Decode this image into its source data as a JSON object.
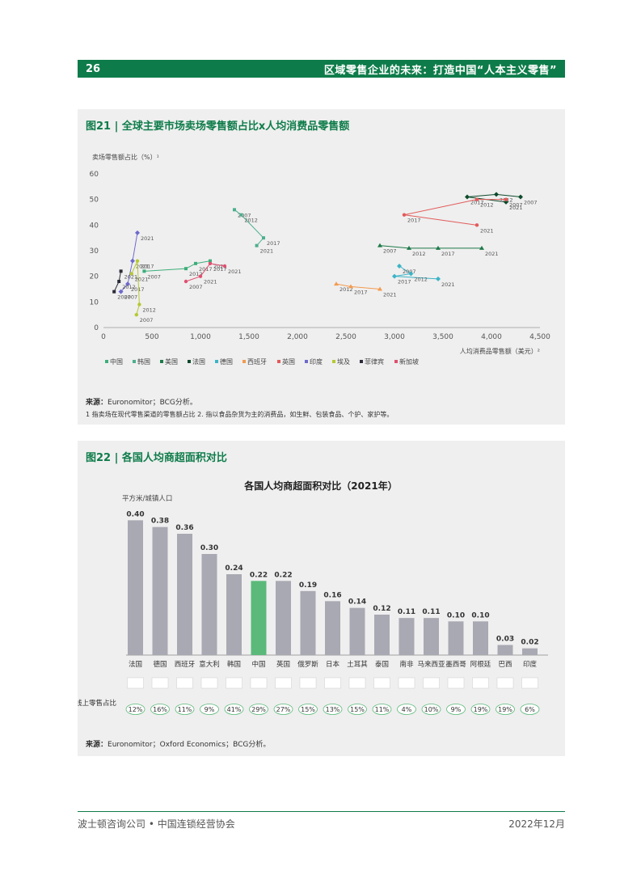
{
  "header": {
    "page_number": "26",
    "title": "区域零售企业的未来：打造中国“人本主义零售”"
  },
  "figure21": {
    "title": "图21 | 全球主要市场卖场零售额占比x人均消费品零售额",
    "source_label": "来源：",
    "source_text": "Euronomitor；BCG分析。",
    "note": "1 指卖场在现代零售渠道的零售额占比 2. 指以食品杂货为主的消费品，如生鲜、包装食品、个护、家护等。",
    "chart_data": {
      "type": "scatter",
      "ylabel": "卖场零售额占比（%）¹",
      "xlabel": "人均消费品零售额（美元）²",
      "xlim": [
        0,
        4500
      ],
      "ylim": [
        0,
        60
      ],
      "xticks": [
        "0",
        "500",
        "1,000",
        "1,500",
        "2,000",
        "2,500",
        "3,000",
        "3,500",
        "4,000",
        "4,500"
      ],
      "yticks": [
        "0",
        "10",
        "20",
        "30",
        "40",
        "50",
        "60"
      ],
      "x_tick_values": [
        0,
        500,
        1000,
        1500,
        2000,
        2500,
        3000,
        3500,
        4000,
        4500
      ],
      "y_tick_values": [
        0,
        10,
        20,
        30,
        40,
        50,
        60
      ],
      "legend_position": "bottom",
      "series": [
        {
          "name": "中国",
          "color": "#3dae7a",
          "marker": "square",
          "points": [
            [
              420,
              22,
              "2007"
            ],
            [
              850,
              23,
              "2012"
            ],
            [
              950,
              25,
              "2017"
            ],
            [
              1100,
              26,
              "2021"
            ]
          ]
        },
        {
          "name": "韩国",
          "color": "#4caf8c",
          "marker": "square",
          "points": [
            [
              1350,
              46,
              "2007"
            ],
            [
              1420,
              44,
              "2012"
            ],
            [
              1650,
              35,
              "2017"
            ],
            [
              1580,
              32,
              "2021"
            ]
          ]
        },
        {
          "name": "美国",
          "color": "#1e7a4a",
          "marker": "triangle",
          "points": [
            [
              2850,
              32,
              "2007"
            ],
            [
              3150,
              31,
              "2012"
            ],
            [
              3450,
              31,
              "2017"
            ],
            [
              3900,
              31,
              "2021"
            ]
          ]
        },
        {
          "name": "法国",
          "color": "#0d4a2b",
          "marker": "diamond",
          "points": [
            [
              4300,
              51,
              "2007"
            ],
            [
              4050,
              52,
              "2012"
            ],
            [
              3750,
              51,
              "2017"
            ],
            [
              4150,
              49,
              "2021"
            ]
          ]
        },
        {
          "name": "德国",
          "color": "#3bb4c6",
          "marker": "diamond",
          "points": [
            [
              3050,
              24,
              "2007"
            ],
            [
              3170,
              21,
              "2012"
            ],
            [
              3000,
              20,
              "2017"
            ],
            [
              3450,
              19,
              "2021"
            ]
          ]
        },
        {
          "name": "西班牙",
          "color": "#f39b50",
          "marker": "triangle",
          "points": [
            [
              2400,
              17,
              "2012"
            ],
            [
              2550,
              16,
              "2017"
            ],
            [
              2850,
              15,
              "2021"
            ]
          ]
        },
        {
          "name": "英国",
          "color": "#e35a5a",
          "marker": "dot",
          "points": [
            [
              4150,
              50,
              "2007"
            ],
            [
              3850,
              50,
              "2012"
            ],
            [
              3100,
              44,
              "2017"
            ],
            [
              3850,
              40,
              "2021"
            ]
          ]
        },
        {
          "name": "印度",
          "color": "#6d6acc",
          "marker": "diamond",
          "points": [
            [
              180,
              14,
              "2007"
            ],
            [
              250,
              17,
              "2017"
            ],
            [
              300,
              26,
              "2021"
            ],
            [
              350,
              37,
              "2021"
            ]
          ]
        },
        {
          "name": "埃及",
          "color": "#b6c832",
          "marker": "dot",
          "points": [
            [
              290,
              21,
              "2021"
            ],
            [
              350,
              26,
              "2017"
            ],
            [
              370,
              9,
              "2012"
            ],
            [
              340,
              5,
              "2007"
            ]
          ]
        },
        {
          "name": "菲律宾",
          "color": "#2b2b3a",
          "marker": "square",
          "points": [
            [
              110,
              14,
              "2007"
            ],
            [
              160,
              18,
              "2012"
            ],
            [
              180,
              22,
              "2021"
            ]
          ]
        },
        {
          "name": "新加坡",
          "color": "#e05070",
          "marker": "dot",
          "points": [
            [
              850,
              18,
              "2007"
            ],
            [
              1000,
              20,
              "2021"
            ],
            [
              1100,
              25,
              "2017"
            ],
            [
              1250,
              24,
              "2021"
            ]
          ]
        }
      ]
    }
  },
  "figure22": {
    "title": "图22 | 各国人均商超面积对比",
    "source_label": "来源：",
    "source_text": "Euronomitor；Oxford Economics；BCG分析。",
    "chart_data": {
      "type": "bar",
      "title": "各国人均商超面积对比（2021年）",
      "ylabel": "平方米/城镇人口",
      "categories": [
        "法国",
        "德国",
        "西班牙",
        "意大利",
        "韩国",
        "中国",
        "英国",
        "俄罗斯",
        "日本",
        "土耳其",
        "泰国",
        "南非",
        "马来西亚",
        "墨西哥",
        "阿根廷",
        "巴西",
        "印度"
      ],
      "values": [
        0.4,
        0.38,
        0.36,
        0.3,
        0.24,
        0.22,
        0.22,
        0.19,
        0.16,
        0.14,
        0.12,
        0.11,
        0.11,
        0.1,
        0.1,
        0.03,
        0.02
      ],
      "value_labels": [
        "0.40",
        "0.38",
        "0.36",
        "0.30",
        "0.24",
        "0.22",
        "0.22",
        "0.19",
        "0.16",
        "0.14",
        "0.12",
        "0.11",
        "0.11",
        "0.10",
        "0.10",
        "0.03",
        "0.02"
      ],
      "highlight_index": 5,
      "bar_color": "#a9a9b3",
      "highlight_color": "#5bb97a",
      "ylim": [
        0,
        0.42
      ],
      "online_label": "线上零售占比",
      "online_share": [
        "12%",
        "16%",
        "11%",
        "9%",
        "41%",
        "29%",
        "27%",
        "15%",
        "13%",
        "15%",
        "11%",
        "4%",
        "10%",
        "9%",
        "19%",
        "19%",
        "6%"
      ]
    }
  },
  "footer": {
    "left": "波士顿咨询公司 • 中国连锁经营协会",
    "right": "2022年12月"
  }
}
